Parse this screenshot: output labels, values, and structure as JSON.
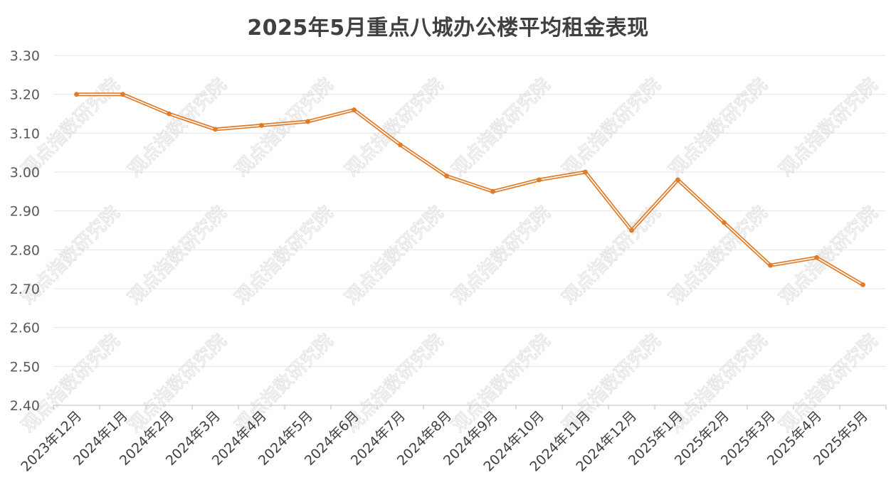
{
  "chart_data": {
    "type": "line",
    "title": "2025年5月重点八城办公楼平均租金表现",
    "xlabel": "",
    "ylabel": "",
    "categories": [
      "2023年12月",
      "2024年1月",
      "2024年2月",
      "2024年3月",
      "2024年4月",
      "2024年5月",
      "2024年6月",
      "2024年7月",
      "2024年8月",
      "2024年9月",
      "2024年10月",
      "2024年11月",
      "2024年12月",
      "2025年1月",
      "2025年2月",
      "2025年3月",
      "2025年4月",
      "2025年5月"
    ],
    "series": [
      {
        "values": [
          3.2,
          3.2,
          3.15,
          3.11,
          3.12,
          3.13,
          3.16,
          3.07,
          2.99,
          2.95,
          2.98,
          3.0,
          2.85,
          2.98,
          2.87,
          2.76,
          2.78,
          2.71
        ]
      }
    ],
    "ylim": [
      2.4,
      3.3
    ],
    "yticks": [
      "2.40",
      "2.50",
      "2.60",
      "2.70",
      "2.80",
      "2.90",
      "3.00",
      "3.10",
      "3.20",
      "3.30"
    ],
    "grid": true,
    "legend": "none",
    "line_color": "#E07B28",
    "watermark": "观点指数研究院"
  }
}
